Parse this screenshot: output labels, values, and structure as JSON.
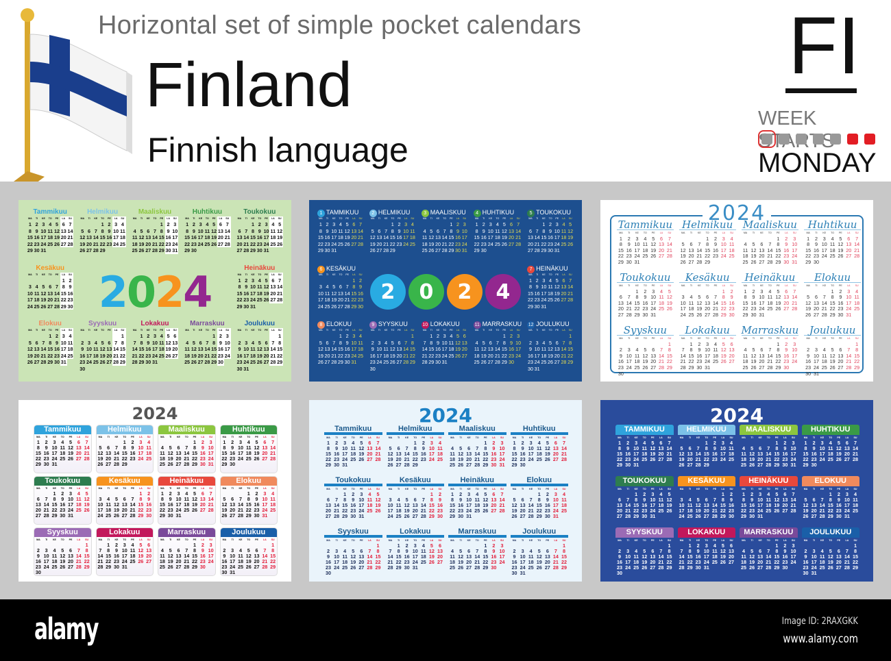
{
  "header": {
    "subtitle": "Horizontal set of simple pocket calendars",
    "country": "Finland",
    "language": "Finnish language",
    "code": "FI",
    "week_starts_label": "WEEK STARTS",
    "week_start_day": "MONDAY",
    "week_dot_colors": {
      "weekday": "#999999",
      "weekend": "#e21d24",
      "selected_ring": "#dd3333"
    }
  },
  "flag": {
    "icon": "finland-flag-on-pole-icon",
    "cross_color": "#1a3e8c",
    "pole_color": "#d9a82e"
  },
  "calendar": {
    "year": "2024",
    "week_starts": "monday",
    "weekdays": [
      "MA",
      "TI",
      "KE",
      "TO",
      "PE",
      "LA",
      "SU"
    ],
    "months": [
      "Tammikuu",
      "Helmikuu",
      "Maaliskuu",
      "Huhtikuu",
      "Toukokuu",
      "Kesäkuu",
      "Heinäkuu",
      "Elokuu",
      "Syyskuu",
      "Lokakuu",
      "Marraskuu",
      "Joulukuu"
    ],
    "month_colors": [
      "#2fa3dc",
      "#7cc2e8",
      "#8cc63f",
      "#3a9a46",
      "#2e7d4f",
      "#f7931e",
      "#e8483c",
      "#f08a5d",
      "#9b6bb5",
      "#c2185b",
      "#7a4a9a",
      "#1a5fa8"
    ],
    "year_digit_colors": [
      "#29abe2",
      "#39b54a",
      "#f7931e",
      "#93278f"
    ]
  },
  "cards": [
    {
      "style": "green",
      "background": "#cbe4b6",
      "layout": "year-center"
    },
    {
      "style": "dark-blue-circles",
      "background": "#1d4f8f",
      "layout": "year-center"
    },
    {
      "style": "white-script",
      "background": "#ffffff",
      "layout": "year-top"
    },
    {
      "style": "white-color-headers",
      "background": "#ffffff",
      "layout": "year-top"
    },
    {
      "style": "light-blue",
      "background": "#eaf4fb",
      "layout": "year-top"
    },
    {
      "style": "blue-color-headers",
      "background": "#2a4c9c",
      "layout": "year-top"
    }
  ],
  "footer": {
    "logo": "alamy",
    "image_id": "Image ID: 2RAXGKK",
    "url": "www.alamy.com"
  }
}
